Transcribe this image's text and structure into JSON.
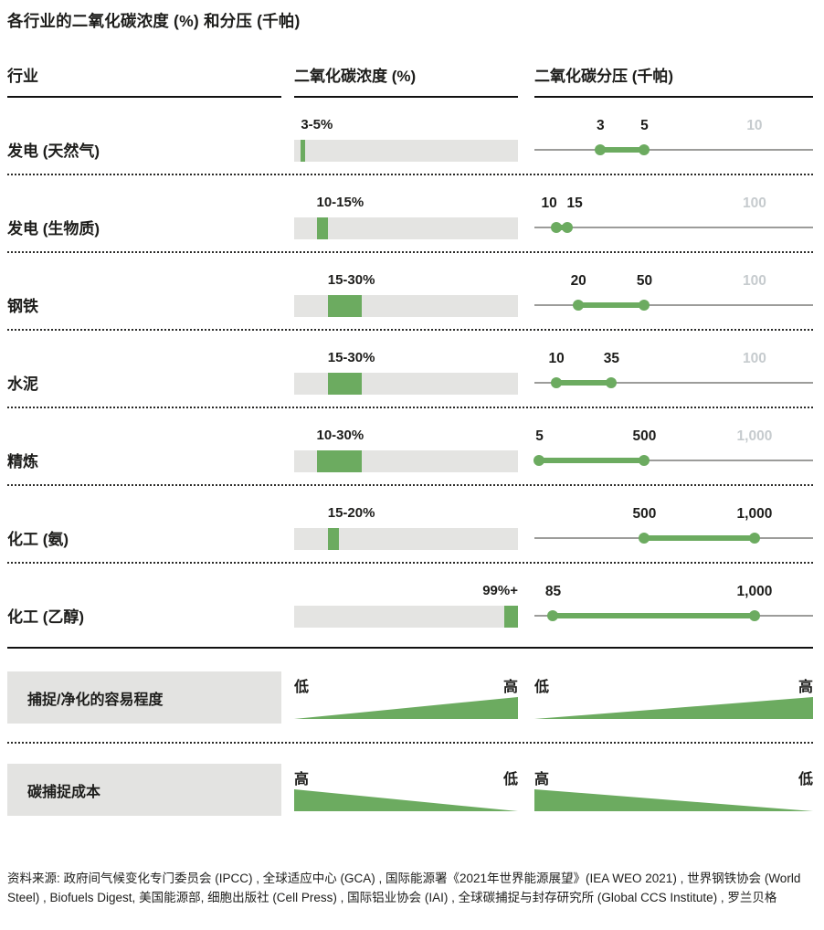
{
  "title": "各行业的二氧化碳浓度 (%) 和分压 (千帕)",
  "header": {
    "industry": "行业",
    "concentration": "二氧化碳浓度 (%)",
    "pressure": "二氧化碳分压 (千帕)"
  },
  "chart_data": {
    "type": "table",
    "title": "各行业的二氧化碳浓度 (%) 和分压 (千帕)",
    "columns": [
      "行业",
      "二氧化碳浓度 (%)",
      "二氧化碳分压 (千帕)"
    ],
    "concentration_axis": {
      "min_pct": 0,
      "max_pct": 100
    },
    "pressure_scale_position_fraction": 0.79,
    "rows": [
      {
        "industry": "发电 (天然气)",
        "conc_label": "3-5%",
        "conc_range_pct": [
          3,
          5
        ],
        "conc_bar_pct": [
          3,
          5
        ],
        "pressure_labels": [
          "3",
          "5"
        ],
        "pressure_range_kpa": [
          3,
          5
        ],
        "pressure_scale_max": 10,
        "pressure_scale_label": "10"
      },
      {
        "industry": "发电 (生物质)",
        "conc_label": "10-15%",
        "conc_range_pct": [
          10,
          15
        ],
        "conc_bar_pct": [
          10,
          15
        ],
        "pressure_labels": [
          "10",
          "15"
        ],
        "pressure_range_kpa": [
          10,
          15
        ],
        "pressure_scale_max": 100,
        "pressure_scale_label": "100"
      },
      {
        "industry": "钢铁",
        "conc_label": "15-30%",
        "conc_range_pct": [
          15,
          30
        ],
        "conc_bar_pct": [
          15,
          30
        ],
        "pressure_labels": [
          "20",
          "50"
        ],
        "pressure_range_kpa": [
          20,
          50
        ],
        "pressure_scale_max": 100,
        "pressure_scale_label": "100"
      },
      {
        "industry": "水泥",
        "conc_label": "15-30%",
        "conc_range_pct": [
          15,
          30
        ],
        "conc_bar_pct": [
          15,
          30
        ],
        "pressure_labels": [
          "10",
          "35"
        ],
        "pressure_range_kpa": [
          10,
          35
        ],
        "pressure_scale_max": 100,
        "pressure_scale_label": "100"
      },
      {
        "industry": "精炼",
        "conc_label": "10-30%",
        "conc_range_pct": [
          10,
          30
        ],
        "conc_bar_pct": [
          10,
          30
        ],
        "pressure_labels": [
          "5",
          "500"
        ],
        "pressure_range_kpa": [
          5,
          500
        ],
        "pressure_scale_max": 1000,
        "pressure_scale_label": "1,000"
      },
      {
        "industry": "化工 (氨)",
        "conc_label": "15-20%",
        "conc_range_pct": [
          15,
          20
        ],
        "conc_bar_pct": [
          15,
          20
        ],
        "pressure_labels": [
          "500",
          "1,000"
        ],
        "pressure_range_kpa": [
          500,
          1000
        ],
        "pressure_scale_max": 1000,
        "pressure_scale_label": null
      },
      {
        "industry": "化工 (乙醇)",
        "conc_label": "99%+",
        "conc_range_pct": [
          99,
          100
        ],
        "conc_bar_pct": [
          94,
          100
        ],
        "pressure_labels": [
          "85",
          "1,000"
        ],
        "pressure_range_kpa": [
          85,
          1000
        ],
        "pressure_scale_max": 1000,
        "pressure_scale_label": null
      }
    ],
    "summary_rows": [
      {
        "label": "捕捉/净化的容易程度",
        "concentration": {
          "left": "低",
          "right": "高",
          "trend": "increasing"
        },
        "pressure": {
          "left": "低",
          "right": "高",
          "trend": "increasing"
        }
      },
      {
        "label": "碳捕捉成本",
        "concentration": {
          "left": "高",
          "right": "低",
          "trend": "decreasing"
        },
        "pressure": {
          "left": "高",
          "right": "低",
          "trend": "decreasing"
        }
      }
    ]
  },
  "source": "资料来源: 政府间气候变化专门委员会 (IPCC) , 全球适应中心 (GCA) , 国际能源署《2021年世界能源展望》(IEA WEO 2021) , 世界钢铁协会 (World Steel) , Biofuels Digest, 美国能源部, 细胞出版社 (Cell Press) , 国际铝业协会 (IAI) , 全球碳捕捉与封存研究所 (Global CCS Institute) , 罗兰贝格",
  "colors": {
    "green": "#6cab60",
    "bar_background": "#e4e4e2",
    "axis_gray": "#9c9c9a",
    "scale_label_gray": "#c6cbce",
    "summary_box_background": "#e3e3e1",
    "text": "#1d1d1b"
  }
}
